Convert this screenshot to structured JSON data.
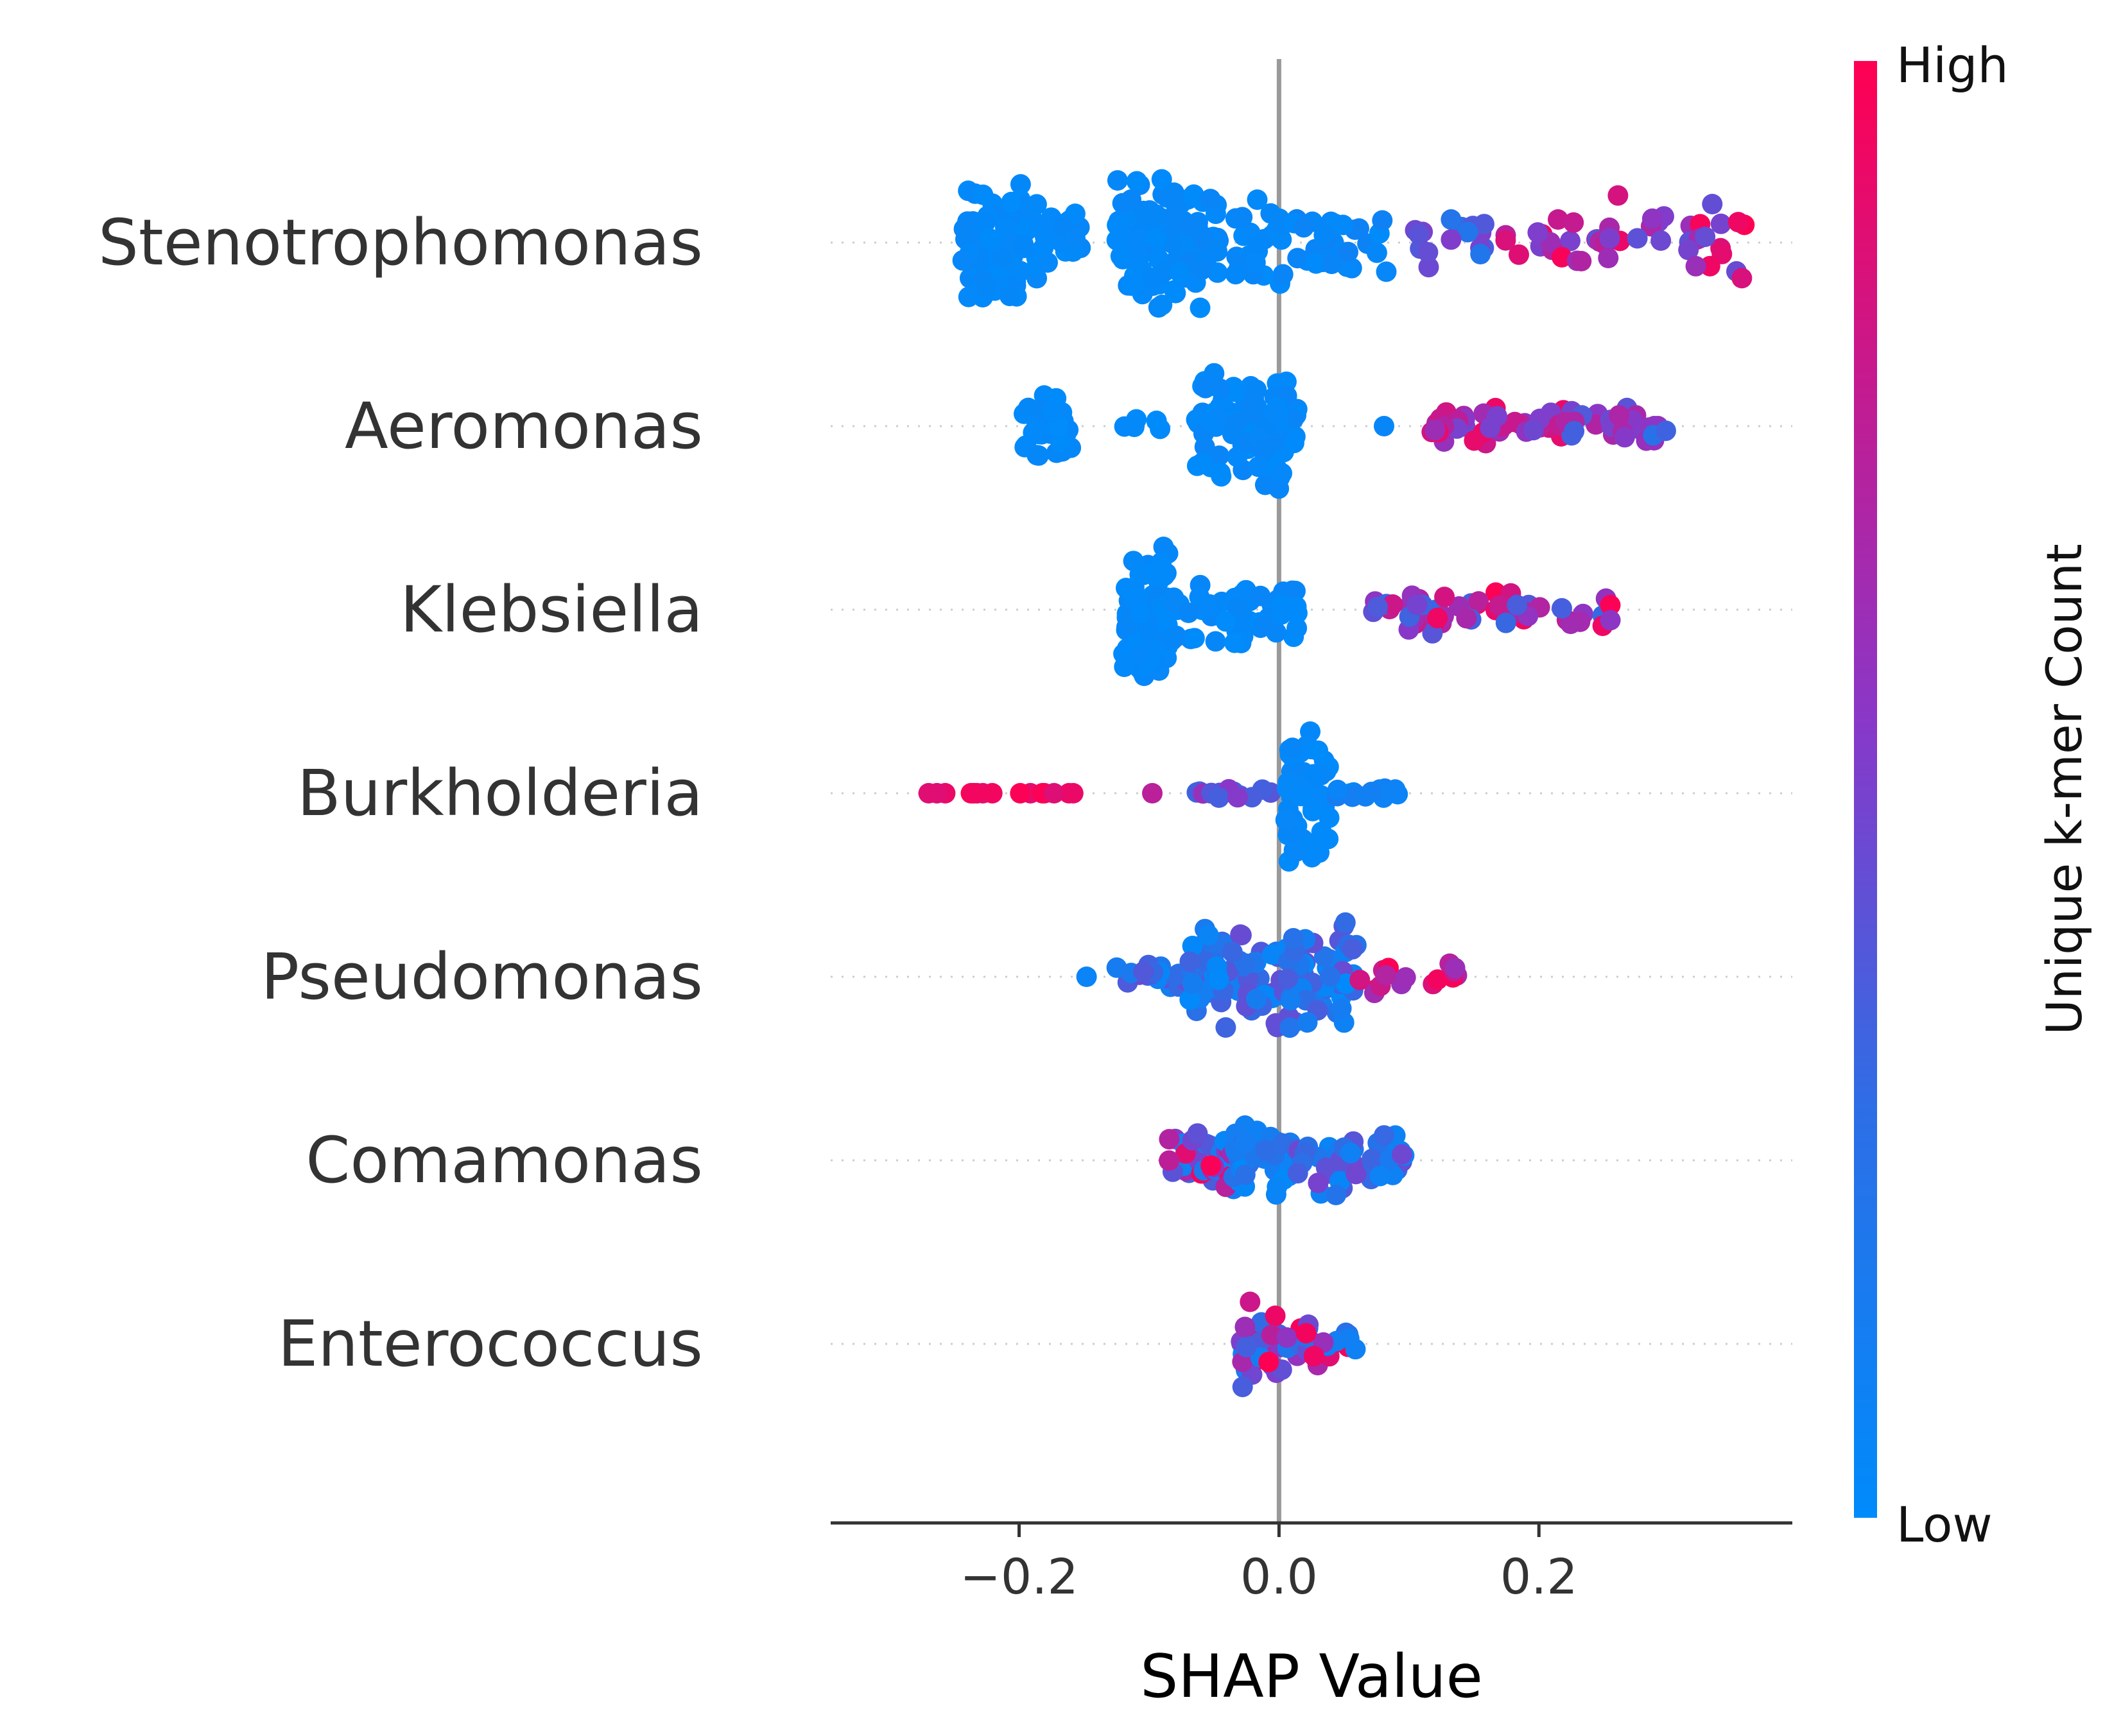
{
  "chart_data": {
    "type": "scatter",
    "subtype": "shap-beeswarm",
    "features": [
      "Stenotrophomonas",
      "Aeromonas",
      "Klebsiella",
      "Burkholderia",
      "Pseudomonas",
      "Comamonas",
      "Enterococcus"
    ],
    "xlabel": "SHAP Value",
    "xlim": [
      -0.345,
      0.395
    ],
    "xticks": [
      -0.2,
      0.0,
      0.2
    ],
    "xtick_labels": [
      "−0.2",
      "0.0",
      "0.2"
    ],
    "zero_line": 0.0,
    "colorbar": {
      "title": "Unique k-mer Count",
      "high_label": "High",
      "low_label": "Low",
      "low_color": "#008bfb",
      "high_color": "#ff0052"
    },
    "series": [
      {
        "feature": "Stenotrophomonas",
        "clusters": [
          {
            "x0": -0.245,
            "x1": -0.185,
            "n": 90,
            "c": [
              0.0,
              0.05
            ],
            "h": 0.9
          },
          {
            "x0": -0.185,
            "x1": -0.15,
            "n": 18,
            "c": [
              0.0,
              0.05
            ],
            "h": 0.5
          },
          {
            "x0": -0.125,
            "x1": -0.06,
            "n": 95,
            "c": [
              0.0,
              0.06
            ],
            "h": 0.95
          },
          {
            "x0": -0.06,
            "x1": 0.005,
            "n": 45,
            "c": [
              0.0,
              0.06
            ],
            "h": 0.75
          },
          {
            "x0": 0.005,
            "x1": 0.085,
            "n": 30,
            "c": [
              0.0,
              0.1
            ],
            "h": 0.45
          },
          {
            "x0": 0.1,
            "x1": 0.16,
            "n": 16,
            "c": [
              0.2,
              0.55
            ],
            "h": 0.35
          },
          {
            "x0": 0.16,
            "x1": 0.24,
            "n": 14,
            "c": [
              0.5,
              1.0
            ],
            "h": 0.4
          },
          {
            "x0": 0.24,
            "x1": 0.36,
            "n": 32,
            "c": [
              0.4,
              1.0
            ],
            "h": 0.65
          }
        ]
      },
      {
        "feature": "Aeromonas",
        "clusters": [
          {
            "x0": -0.2,
            "x1": -0.16,
            "n": 35,
            "c": [
              0.0,
              0.05
            ],
            "h": 0.55
          },
          {
            "x0": -0.125,
            "x1": -0.09,
            "n": 6,
            "c": [
              0.0,
              0.05
            ],
            "h": 0.12
          },
          {
            "x0": -0.065,
            "x1": -0.02,
            "n": 45,
            "c": [
              0.0,
              0.06
            ],
            "h": 0.8
          },
          {
            "x0": -0.02,
            "x1": 0.015,
            "n": 40,
            "c": [
              0.0,
              0.06
            ],
            "h": 0.95
          },
          {
            "x0": 0.08,
            "x1": 0.09,
            "n": 1,
            "c": [
              0.0,
              0.1
            ],
            "h": 0.0
          },
          {
            "x0": 0.11,
            "x1": 0.22,
            "n": 45,
            "c": [
              0.45,
              1.0
            ],
            "h": 0.25
          },
          {
            "x0": 0.22,
            "x1": 0.31,
            "n": 28,
            "c": [
              0.25,
              0.7
            ],
            "h": 0.25
          }
        ]
      },
      {
        "feature": "Klebsiella",
        "clusters": [
          {
            "x0": -0.12,
            "x1": -0.085,
            "n": 85,
            "c": [
              0.0,
              0.05
            ],
            "h": 1.0
          },
          {
            "x0": -0.085,
            "x1": -0.02,
            "n": 40,
            "c": [
              0.0,
              0.06
            ],
            "h": 0.55
          },
          {
            "x0": -0.015,
            "x1": 0.015,
            "n": 22,
            "c": [
              0.0,
              0.06
            ],
            "h": 0.4
          },
          {
            "x0": 0.07,
            "x1": 0.26,
            "n": 55,
            "c": [
              0.3,
              1.0
            ],
            "h": 0.35
          }
        ]
      },
      {
        "feature": "Burkholderia",
        "clusters": [
          {
            "x0": -0.31,
            "x1": -0.15,
            "n": 16,
            "c": [
              0.85,
              1.0
            ],
            "h": 0.0
          },
          {
            "x0": -0.1,
            "x1": -0.09,
            "n": 1,
            "c": [
              0.65,
              0.75
            ],
            "h": 0.0
          },
          {
            "x0": -0.065,
            "x1": 0.0,
            "n": 16,
            "c": [
              0.3,
              0.6
            ],
            "h": 0.1
          },
          {
            "x0": 0.005,
            "x1": 0.04,
            "n": 55,
            "c": [
              0.0,
              0.05
            ],
            "h": 1.0
          },
          {
            "x0": 0.04,
            "x1": 0.095,
            "n": 14,
            "c": [
              0.05,
              0.15
            ],
            "h": 0.1
          }
        ]
      },
      {
        "feature": "Pseudomonas",
        "clusters": [
          {
            "x0": -0.15,
            "x1": -0.14,
            "n": 1,
            "c": [
              0.05,
              0.1
            ],
            "h": 0.0
          },
          {
            "x0": -0.125,
            "x1": -0.07,
            "n": 24,
            "c": [
              0.05,
              0.45
            ],
            "h": 0.2
          },
          {
            "x0": -0.07,
            "x1": 0.06,
            "n": 140,
            "c": [
              0.0,
              0.45
            ],
            "h": 0.75
          },
          {
            "x0": 0.06,
            "x1": 0.15,
            "n": 16,
            "c": [
              0.6,
              1.0
            ],
            "h": 0.25
          }
        ]
      },
      {
        "feature": "Comamonas",
        "clusters": [
          {
            "x0": -0.085,
            "x1": -0.035,
            "n": 35,
            "c": [
              0.0,
              1.0
            ],
            "h": 0.5
          },
          {
            "x0": -0.035,
            "x1": 0.01,
            "n": 45,
            "c": [
              0.0,
              0.3
            ],
            "h": 0.65
          },
          {
            "x0": 0.01,
            "x1": 0.1,
            "n": 45,
            "c": [
              0.05,
              0.5
            ],
            "h": 0.5
          }
        ]
      },
      {
        "feature": "Enterococcus",
        "clusters": [
          {
            "x0": -0.03,
            "x1": 0.005,
            "n": 35,
            "c": [
              0.0,
              1.0
            ],
            "h": 0.7
          },
          {
            "x0": 0.005,
            "x1": 0.06,
            "n": 24,
            "c": [
              0.0,
              1.0
            ],
            "h": 0.35
          }
        ]
      }
    ]
  }
}
